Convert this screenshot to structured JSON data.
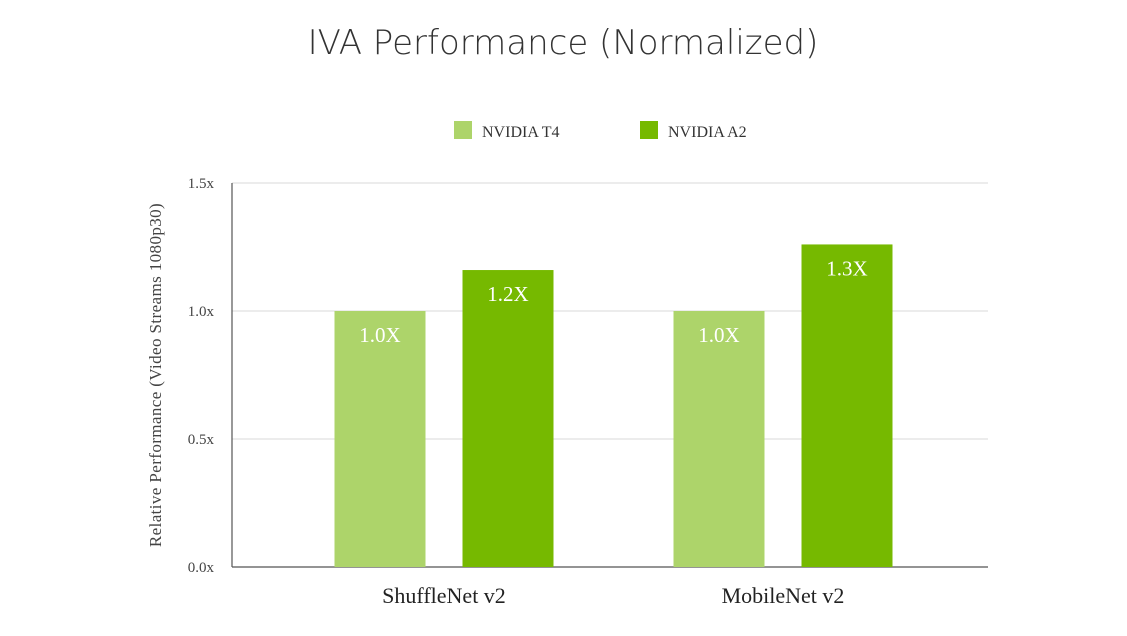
{
  "chart_data": {
    "type": "bar",
    "title": "IVA Performance (Normalized)",
    "xlabel": "",
    "ylabel": "Relative Performance (Video Streams 1080p30)",
    "categories": [
      "ShuffleNet v2",
      "MobileNet v2"
    ],
    "series": [
      {
        "name": "NVIDIA T4",
        "color": "#add46a",
        "values": [
          1.0,
          1.0
        ],
        "data_labels": [
          "1.0X",
          "1.0X"
        ]
      },
      {
        "name": "NVIDIA A2",
        "color": "#76b900",
        "values": [
          1.16,
          1.26
        ],
        "data_labels": [
          "1.2X",
          "1.3X"
        ]
      }
    ],
    "ylim": [
      0,
      1.5
    ],
    "yticks": [
      0,
      0.5,
      1.0,
      1.5
    ],
    "ytick_labels": [
      "0.0x",
      "0.5x",
      "1.0x",
      "1.5x"
    ],
    "grid": true,
    "legend_position": "top-center"
  }
}
